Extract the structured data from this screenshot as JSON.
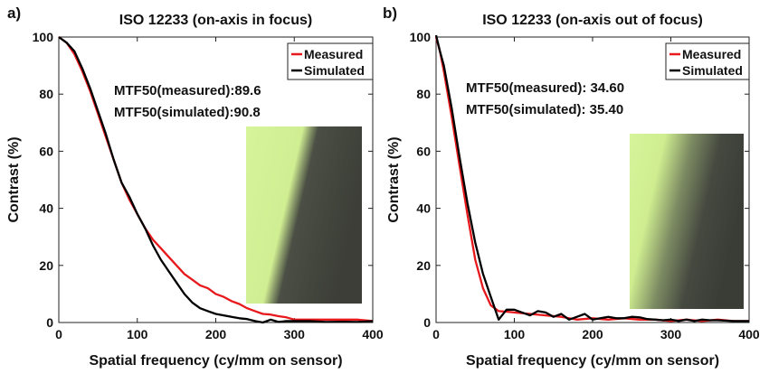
{
  "chart_data": [
    {
      "type": "line",
      "panel_label": "a)",
      "title": "ISO 12233 (on-axis in focus)",
      "xlabel": "Spatial frequency (cy/mm on sensor)",
      "ylabel": "Contrast (%)",
      "xlim": [
        0,
        400
      ],
      "ylim": [
        0,
        100
      ],
      "xticks": [
        0,
        100,
        200,
        300,
        400
      ],
      "yticks": [
        0,
        20,
        40,
        60,
        80,
        100
      ],
      "legend_position": "top-right",
      "annotations": [
        "MTF50(measured):89.6",
        "MTF50(simulated):90.8"
      ],
      "inset": "edge-image",
      "series": [
        {
          "name": "Measured",
          "color": "#e8191c",
          "x": [
            0,
            10,
            20,
            30,
            40,
            50,
            60,
            70,
            80,
            90,
            100,
            110,
            120,
            130,
            140,
            150,
            160,
            170,
            180,
            190,
            200,
            210,
            220,
            230,
            240,
            250,
            260,
            270,
            280,
            290,
            300,
            320,
            340,
            360,
            380,
            400
          ],
          "y": [
            100,
            98,
            94,
            88,
            81,
            73,
            65,
            57,
            49,
            43,
            38,
            33,
            29,
            26,
            23,
            20,
            17,
            15,
            13,
            12,
            10,
            9,
            7.5,
            6.5,
            5,
            4,
            3,
            2.8,
            2.2,
            1.8,
            1,
            1,
            1,
            1,
            1,
            0.5
          ]
        },
        {
          "name": "Simulated",
          "color": "#000000",
          "x": [
            0,
            10,
            20,
            30,
            40,
            50,
            60,
            70,
            80,
            90,
            100,
            110,
            120,
            130,
            140,
            150,
            160,
            170,
            180,
            190,
            200,
            210,
            220,
            230,
            240,
            250,
            260,
            270,
            280,
            290,
            300,
            320,
            340,
            360,
            380,
            400
          ],
          "y": [
            100,
            98,
            95,
            89,
            82,
            74,
            66,
            57,
            49,
            44,
            38,
            33,
            27,
            22,
            18,
            14,
            10,
            7,
            5,
            4,
            3,
            2.5,
            2,
            1.5,
            1.2,
            0.5,
            0,
            1,
            0.2,
            0.5,
            0.5,
            0.5,
            0.2,
            0.3,
            0.2,
            0.5
          ]
        }
      ]
    },
    {
      "type": "line",
      "panel_label": "b)",
      "title": "ISO 12233 (on-axis out of focus)",
      "xlabel": "Spatial frequency (cy/mm on sensor)",
      "ylabel": "Contrast (%)",
      "xlim": [
        0,
        400
      ],
      "ylim": [
        0,
        100
      ],
      "xticks": [
        0,
        100,
        200,
        300,
        400
      ],
      "yticks": [
        0,
        20,
        40,
        60,
        80,
        100
      ],
      "legend_position": "top-right",
      "annotations": [
        "MTF50(measured): 34.60",
        "MTF50(simulated): 35.40"
      ],
      "inset": "edge-image",
      "series": [
        {
          "name": "Measured",
          "color": "#e8191c",
          "x": [
            0,
            5,
            10,
            20,
            30,
            40,
            50,
            60,
            70,
            80,
            90,
            100,
            120,
            140,
            160,
            180,
            200,
            220,
            240,
            260,
            280,
            300,
            320,
            340,
            360,
            380,
            400
          ],
          "y": [
            100,
            95,
            88,
            72,
            55,
            38,
            22,
            12,
            6,
            4,
            3.8,
            3.5,
            3,
            2.5,
            2,
            1,
            1.5,
            1,
            1.5,
            1,
            1,
            0.5,
            1,
            0.5,
            1,
            0.5,
            0.5
          ]
        },
        {
          "name": "Simulated",
          "color": "#000000",
          "x": [
            0,
            5,
            10,
            20,
            30,
            40,
            50,
            60,
            70,
            80,
            90,
            100,
            110,
            120,
            130,
            140,
            150,
            160,
            170,
            180,
            190,
            200,
            210,
            220,
            230,
            240,
            250,
            260,
            270,
            280,
            290,
            300,
            310,
            320,
            330,
            340,
            350,
            360,
            380,
            400
          ],
          "y": [
            102,
            95,
            90,
            75,
            58,
            42,
            28,
            17,
            9,
            1,
            4.5,
            4.5,
            3.5,
            2.5,
            4,
            3.5,
            2,
            3,
            1,
            2,
            3,
            1,
            1.5,
            2,
            1.5,
            1.5,
            2,
            1.8,
            1.2,
            1,
            0.8,
            1,
            0.5,
            1,
            0.5,
            1,
            0.8,
            0.8,
            0.5,
            0.5
          ]
        }
      ]
    }
  ]
}
